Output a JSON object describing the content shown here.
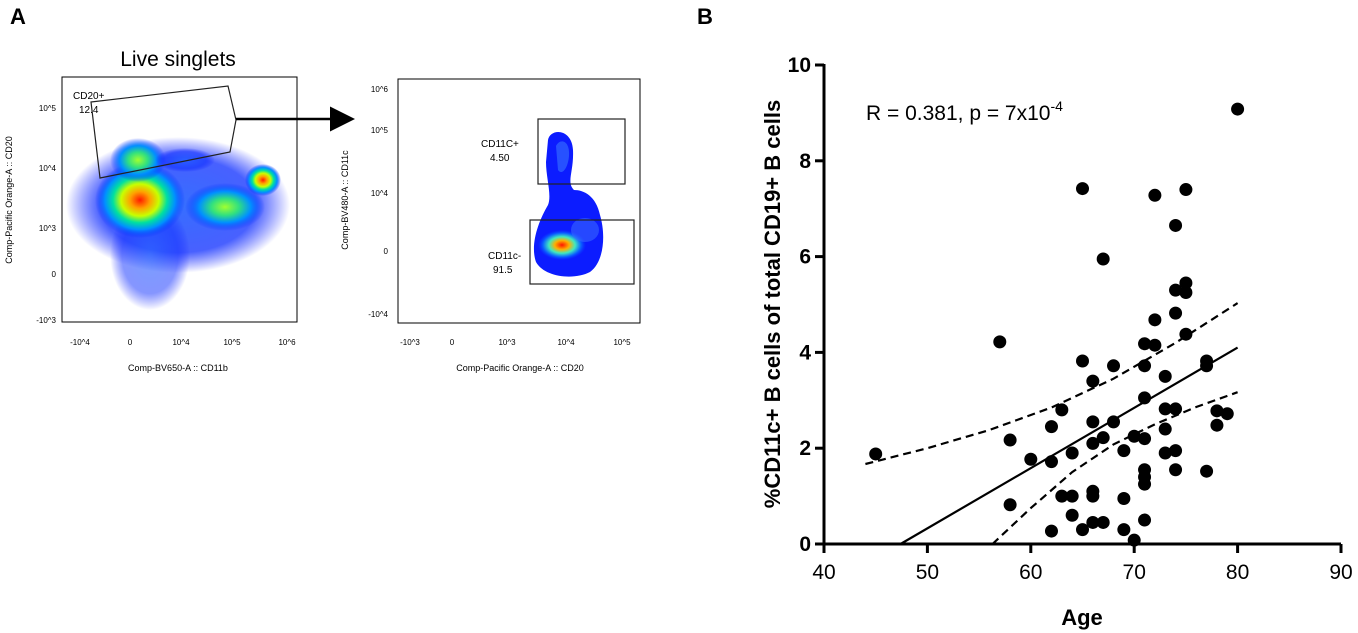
{
  "panel_labels": {
    "a": "A",
    "b": "B"
  },
  "flow_left": {
    "title": "Live singlets",
    "xlabel": "Comp-BV650-A :: CD11b",
    "ylabel": "Comp-Pacific Orange-A :: CD20",
    "xticks": [
      "-10^4",
      "0",
      "10^4",
      "10^5",
      "10^6"
    ],
    "yticks": [
      "10^5",
      "10^4",
      "10^3",
      "0",
      "-10^3"
    ],
    "gate": {
      "name": "CD20+",
      "value": "12.4"
    }
  },
  "flow_right": {
    "xlabel": "Comp-Pacific Orange-A :: CD20",
    "ylabel": "Comp-BV480-A :: CD11c",
    "xticks": [
      "-10^3",
      "0",
      "10^3",
      "10^4",
      "10^5"
    ],
    "yticks": [
      "10^6",
      "10^5",
      "10^4",
      "0",
      "-10^4"
    ],
    "gate_pos": {
      "name": "CD11C+",
      "value": "4.50"
    },
    "gate_neg": {
      "name": "CD11c-",
      "value": "91.5"
    }
  },
  "chart_data": {
    "type": "scatter",
    "title": "",
    "annotation": "R = 0.381, p = 7x10-4",
    "xlabel": "Age",
    "ylabel": "%CD11c+ B cells of total CD19+ B cells",
    "xlim": [
      40,
      90
    ],
    "ylim": [
      0,
      10
    ],
    "xticks": [
      40,
      50,
      60,
      70,
      80,
      90
    ],
    "yticks": [
      0,
      2,
      4,
      6,
      8,
      10
    ],
    "points": [
      [
        45,
        1.88
      ],
      [
        57,
        4.22
      ],
      [
        58,
        2.17
      ],
      [
        58,
        0.82
      ],
      [
        60,
        1.77
      ],
      [
        62,
        2.45
      ],
      [
        62,
        1.72
      ],
      [
        62,
        0.27
      ],
      [
        63,
        2.8
      ],
      [
        63,
        1.0
      ],
      [
        64,
        1.0
      ],
      [
        64,
        0.6
      ],
      [
        64,
        1.9
      ],
      [
        65,
        7.42
      ],
      [
        65,
        3.82
      ],
      [
        65,
        0.3
      ],
      [
        66,
        3.4
      ],
      [
        66,
        2.55
      ],
      [
        66,
        2.1
      ],
      [
        66,
        1.1
      ],
      [
        66,
        1.0
      ],
      [
        66,
        0.45
      ],
      [
        67,
        5.95
      ],
      [
        67,
        2.22
      ],
      [
        67,
        0.45
      ],
      [
        68,
        3.72
      ],
      [
        68,
        2.55
      ],
      [
        69,
        1.95
      ],
      [
        69,
        0.95
      ],
      [
        69,
        0.3
      ],
      [
        70,
        2.25
      ],
      [
        70,
        0.08
      ],
      [
        71,
        4.18
      ],
      [
        71,
        3.72
      ],
      [
        71,
        3.05
      ],
      [
        71,
        2.2
      ],
      [
        71,
        1.55
      ],
      [
        71,
        1.4
      ],
      [
        71,
        1.25
      ],
      [
        71,
        0.5
      ],
      [
        72,
        7.28
      ],
      [
        72,
        4.68
      ],
      [
        72,
        4.15
      ],
      [
        73,
        3.5
      ],
      [
        73,
        2.82
      ],
      [
        73,
        2.4
      ],
      [
        73,
        1.9
      ],
      [
        74,
        6.65
      ],
      [
        74,
        5.3
      ],
      [
        74,
        4.82
      ],
      [
        74,
        2.82
      ],
      [
        74,
        1.95
      ],
      [
        74,
        1.55
      ],
      [
        75,
        7.4
      ],
      [
        75,
        5.45
      ],
      [
        75,
        5.25
      ],
      [
        75,
        4.38
      ],
      [
        77,
        3.82
      ],
      [
        77,
        3.72
      ],
      [
        77,
        1.52
      ],
      [
        78,
        2.78
      ],
      [
        78,
        2.48
      ],
      [
        79,
        2.72
      ],
      [
        80,
        9.08
      ]
    ],
    "regression": {
      "x1": 47.4,
      "y1": 0,
      "x2": 80,
      "y2": 4.1
    },
    "ci_upper": [
      [
        44,
        1.67
      ],
      [
        50,
        2.0
      ],
      [
        56,
        2.38
      ],
      [
        62,
        2.85
      ],
      [
        68,
        3.45
      ],
      [
        74,
        4.2
      ],
      [
        80,
        5.03
      ]
    ],
    "ci_lower": [
      [
        56.3,
        0
      ],
      [
        60,
        0.75
      ],
      [
        64,
        1.5
      ],
      [
        68,
        2.08
      ],
      [
        72,
        2.5
      ],
      [
        76,
        2.86
      ],
      [
        80,
        3.17
      ]
    ]
  }
}
